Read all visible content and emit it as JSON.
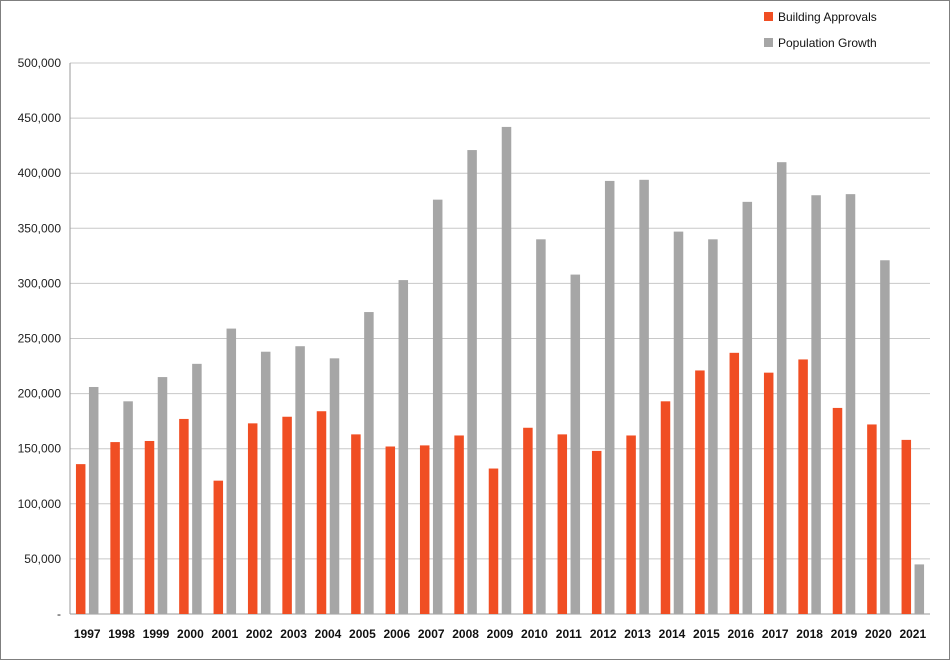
{
  "chart_data": {
    "type": "bar",
    "categories": [
      "1997",
      "1998",
      "1999",
      "2000",
      "2001",
      "2002",
      "2003",
      "2004",
      "2005",
      "2006",
      "2007",
      "2008",
      "2009",
      "2010",
      "2011",
      "2012",
      "2013",
      "2014",
      "2015",
      "2016",
      "2017",
      "2018",
      "2019",
      "2020",
      "2021"
    ],
    "series": [
      {
        "name": "Building Approvals",
        "color": "#f04e23",
        "values": [
          136000,
          156000,
          157000,
          177000,
          121000,
          173000,
          179000,
          184000,
          163000,
          152000,
          153000,
          162000,
          132000,
          169000,
          163000,
          148000,
          162000,
          193000,
          221000,
          237000,
          219000,
          231000,
          187000,
          172000,
          158000
        ]
      },
      {
        "name": "Population Growth",
        "color": "#a6a6a6",
        "values": [
          206000,
          193000,
          215000,
          227000,
          259000,
          238000,
          243000,
          232000,
          274000,
          303000,
          376000,
          421000,
          442000,
          340000,
          308000,
          393000,
          394000,
          347000,
          340000,
          374000,
          410000,
          380000,
          381000,
          321000,
          45000
        ]
      }
    ],
    "yticks": [
      "-",
      "50,000",
      "100,000",
      "150,000",
      "200,000",
      "250,000",
      "300,000",
      "350,000",
      "400,000",
      "450,000",
      "500,000"
    ],
    "ylim": [
      0,
      500000
    ],
    "grid": true,
    "legend_position": "top-right",
    "title": "",
    "xlabel": "",
    "ylabel": ""
  }
}
